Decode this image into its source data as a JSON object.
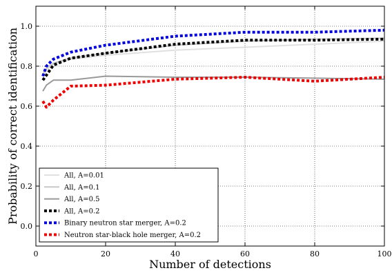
{
  "chart_data": {
    "type": "line",
    "title": "",
    "xlabel": "Number of detections",
    "ylabel": "Probability of correct identification",
    "xlim": [
      0,
      100
    ],
    "ylim": [
      -0.1,
      1.1
    ],
    "xticks": [
      0,
      20,
      40,
      60,
      80,
      100
    ],
    "yticks": [
      0.0,
      0.2,
      0.4,
      0.6,
      0.8,
      1.0
    ],
    "xtick_labels": [
      "0",
      "20",
      "40",
      "60",
      "80",
      "100"
    ],
    "ytick_labels": [
      "0.0",
      "0.2",
      "0.4",
      "0.6",
      "0.8",
      "1.0"
    ],
    "grid": true,
    "grid_style": "dotted",
    "legend_position": "lower-left",
    "series": [
      {
        "name": "All, A=0.01",
        "color": "#e0e0e0",
        "style": "solid",
        "x": [
          2,
          3,
          5,
          10,
          20,
          40,
          60,
          80,
          100
        ],
        "y": [
          0.75,
          0.78,
          0.81,
          0.835,
          0.855,
          0.88,
          0.895,
          0.91,
          0.925
        ]
      },
      {
        "name": "All, A=0.1",
        "color": "#c8c8c8",
        "style": "solid",
        "x": [
          2,
          3,
          5,
          10,
          20,
          40,
          60,
          80,
          100
        ],
        "y": [
          0.76,
          0.79,
          0.815,
          0.84,
          0.865,
          0.905,
          0.925,
          0.935,
          0.94
        ]
      },
      {
        "name": "All, A=0.5",
        "color": "#999999",
        "style": "solid",
        "x": [
          2,
          3,
          5,
          10,
          20,
          40,
          60,
          80,
          100
        ],
        "y": [
          0.675,
          0.705,
          0.73,
          0.73,
          0.75,
          0.745,
          0.745,
          0.74,
          0.735
        ]
      },
      {
        "name": "All, A=0.2",
        "color": "#000000",
        "style": "dotted",
        "x": [
          2,
          3,
          5,
          10,
          20,
          40,
          60,
          80,
          100
        ],
        "y": [
          0.73,
          0.755,
          0.805,
          0.84,
          0.865,
          0.91,
          0.93,
          0.93,
          0.935
        ]
      },
      {
        "name": "Binary neutron star merger, A=0.2",
        "color": "#0000dd",
        "style": "dotted",
        "x": [
          2,
          3,
          5,
          10,
          20,
          40,
          60,
          80,
          100
        ],
        "y": [
          0.75,
          0.8,
          0.835,
          0.87,
          0.905,
          0.95,
          0.97,
          0.97,
          0.98
        ]
      },
      {
        "name": "Neutron star-black hole merger, A=0.2",
        "color": "#ee0000",
        "style": "dotted",
        "x": [
          2,
          3,
          5,
          10,
          20,
          40,
          60,
          80,
          100
        ],
        "y": [
          0.625,
          0.595,
          0.63,
          0.7,
          0.705,
          0.735,
          0.745,
          0.725,
          0.745
        ]
      }
    ]
  }
}
